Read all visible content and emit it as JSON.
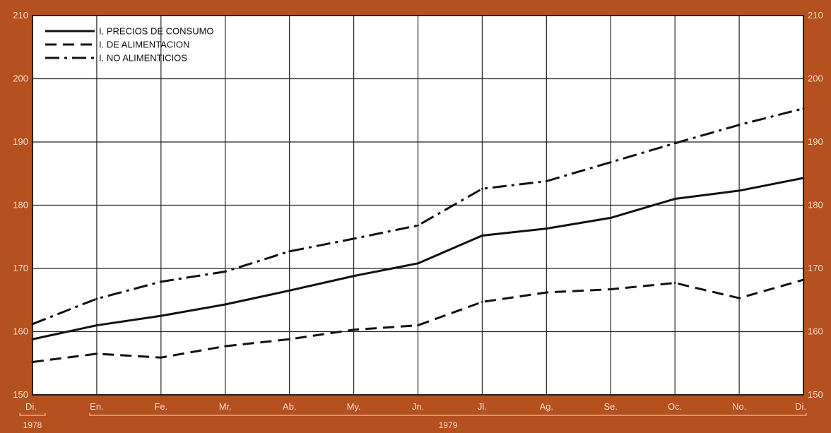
{
  "chart_data": {
    "type": "line",
    "title": "",
    "xlabel": "",
    "ylabel": "",
    "categories": [
      "Di.",
      "En.",
      "Fe.",
      "Mr.",
      "Ab.",
      "My.",
      "Jn.",
      "Jl.",
      "Ag.",
      "Se.",
      "Oc.",
      "No.",
      "Di."
    ],
    "ylim": [
      150,
      210
    ],
    "yticks": [
      150,
      160,
      170,
      180,
      190,
      200,
      210
    ],
    "grid": true,
    "legend_position": "top-left",
    "years": [
      {
        "label": "1978",
        "from": 0,
        "to": 0
      },
      {
        "label": "1979",
        "from": 1,
        "to": 12
      }
    ],
    "series": [
      {
        "name": "I. PRECIOS DE CONSUMO",
        "dash": "solid",
        "values": [
          158.8,
          161.0,
          162.5,
          164.3,
          166.5,
          168.8,
          170.8,
          175.2,
          176.3,
          178.0,
          181.0,
          182.3,
          184.3
        ]
      },
      {
        "name": "I. DE ALIMENTACION",
        "dash": "dashed",
        "values": [
          155.2,
          156.5,
          155.9,
          157.7,
          158.8,
          160.3,
          161.0,
          164.7,
          166.2,
          166.7,
          167.7,
          165.3,
          168.2
        ]
      },
      {
        "name": "I. NO ALIMENTICIOS",
        "dash": "dashdot",
        "values": [
          161.2,
          165.2,
          167.9,
          169.5,
          172.7,
          174.7,
          176.8,
          182.6,
          183.8,
          186.8,
          189.8,
          192.7,
          195.3
        ]
      }
    ],
    "colors": {
      "background": "#b5501f",
      "plot": "#ffffff",
      "line": "#111111",
      "tick": "#f3dcc8"
    }
  }
}
